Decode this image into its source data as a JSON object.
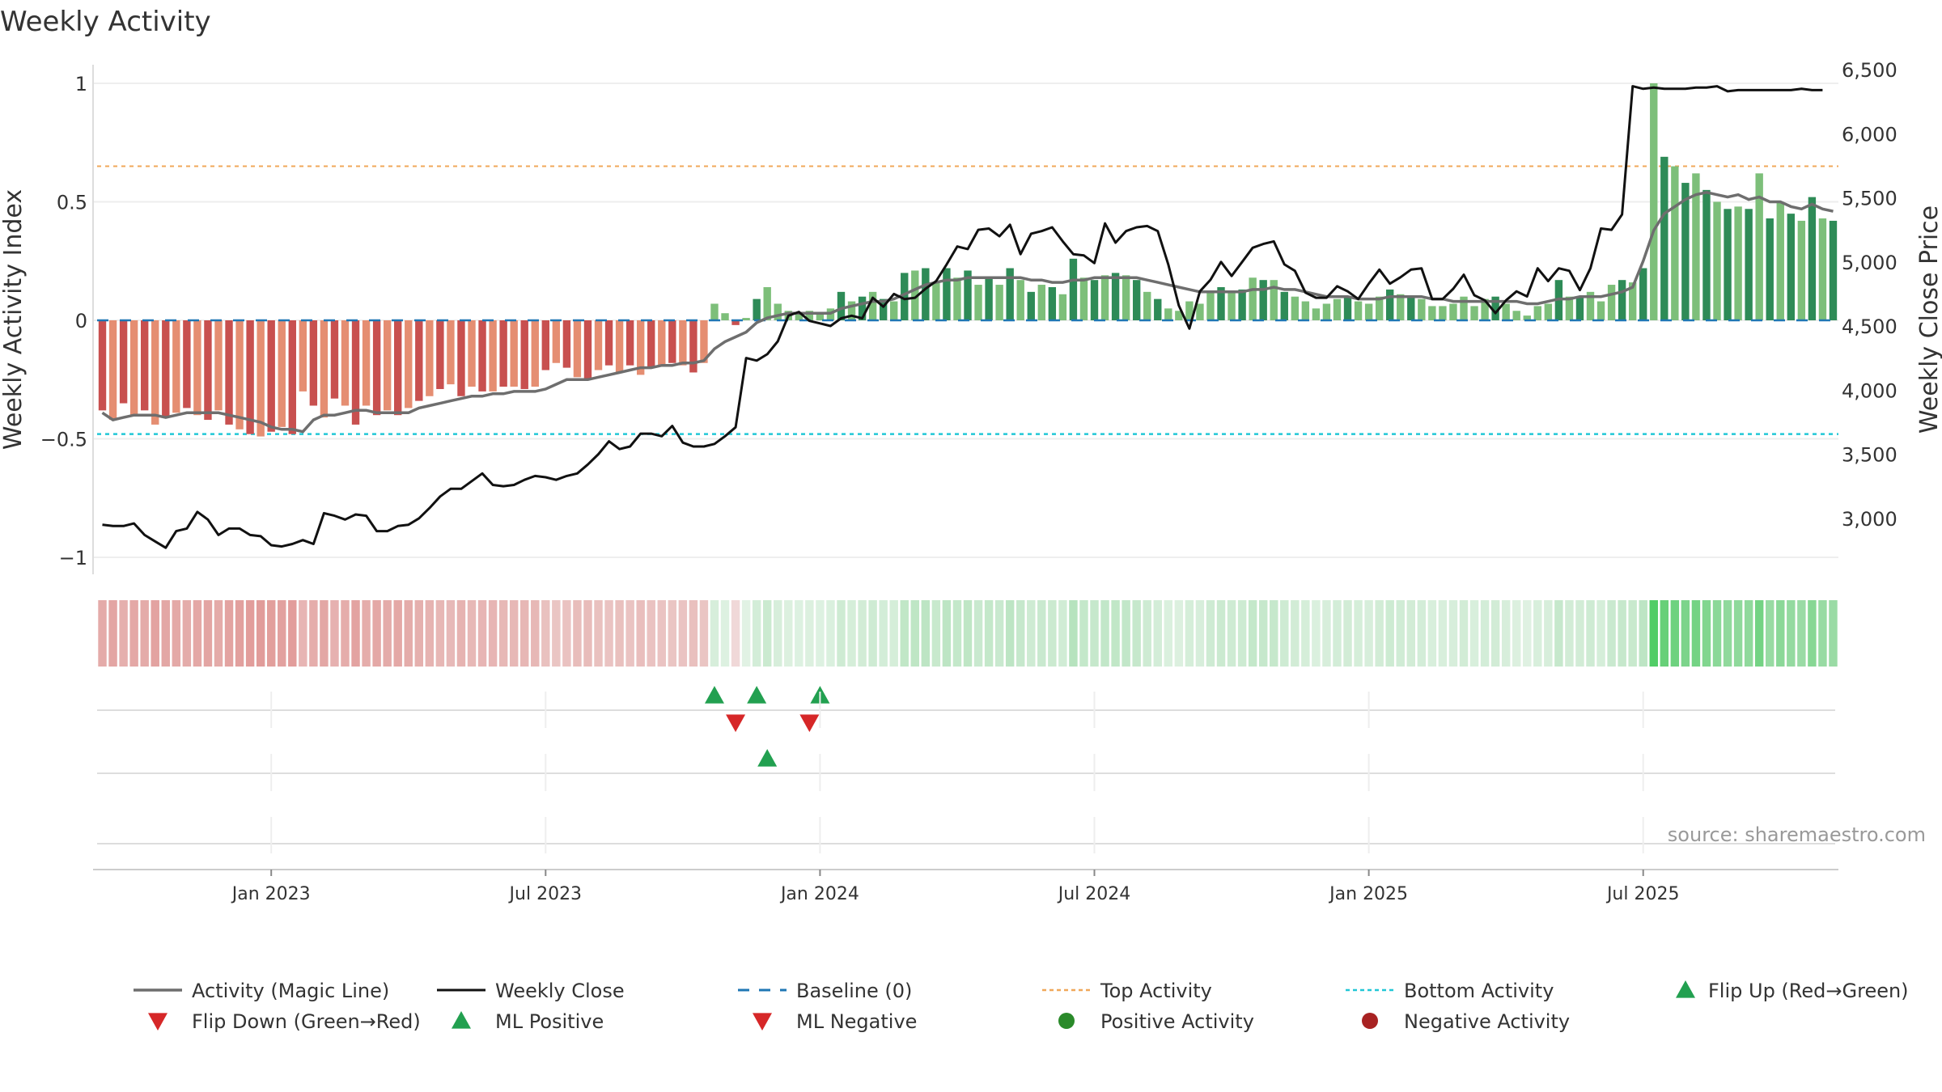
{
  "title": "Weekly Activity",
  "source": "source: sharemaestro.com",
  "colors": {
    "neg_dark": "#c8504f",
    "neg_light": "#e58e72",
    "pos_dark": "#2e8b57",
    "pos_light": "#7dbf7a",
    "magic": "#6e6e6e",
    "close": "#111111",
    "baseline": "#1f77b4",
    "top": "#f0a85a",
    "bottom": "#22c7d6",
    "flip_up": "#22a050",
    "flip_down": "#d62728"
  },
  "chart_data": {
    "type": "bar",
    "title": "Weekly Activity",
    "ylabel_left": "Weekly Activity Index",
    "ylabel_right": "Weekly Close Price",
    "ylim_left": [
      -1.05,
      1.0
    ],
    "ylim_right": [
      2600,
      6500
    ],
    "left_ticks": [
      {
        "v": 1,
        "label": "1"
      },
      {
        "v": 0.5,
        "label": "0.5"
      },
      {
        "v": 0,
        "label": "0"
      },
      {
        "v": -0.5,
        "label": "−0.5"
      },
      {
        "v": -1,
        "label": "−1"
      }
    ],
    "right_ticks": [
      {
        "v": 6500,
        "label": "6,500"
      },
      {
        "v": 6000,
        "label": "6,000"
      },
      {
        "v": 5500,
        "label": "5,500"
      },
      {
        "v": 5000,
        "label": "5,000"
      },
      {
        "v": 4500,
        "label": "4,500"
      },
      {
        "v": 4000,
        "label": "4,000"
      },
      {
        "v": 3500,
        "label": "3,500"
      },
      {
        "v": 3000,
        "label": "3,000"
      }
    ],
    "date_ticks": [
      {
        "week": 16,
        "label": "Jan 2023"
      },
      {
        "week": 42,
        "label": "Jul 2023"
      },
      {
        "week": 68,
        "label": "Jan 2024"
      },
      {
        "week": 94,
        "label": "Jul 2024"
      },
      {
        "week": 120,
        "label": "Jan 2025"
      },
      {
        "week": 146,
        "label": "Jul 2025"
      }
    ],
    "top_activity": 0.65,
    "bottom_activity": -0.48,
    "activity": [
      -0.38,
      -0.42,
      -0.35,
      -0.4,
      -0.38,
      -0.44,
      -0.41,
      -0.39,
      -0.37,
      -0.4,
      -0.42,
      -0.38,
      -0.44,
      -0.46,
      -0.48,
      -0.49,
      -0.47,
      -0.45,
      -0.48,
      -0.3,
      -0.36,
      -0.41,
      -0.33,
      -0.36,
      -0.44,
      -0.36,
      -0.4,
      -0.38,
      -0.4,
      -0.37,
      -0.34,
      -0.32,
      -0.29,
      -0.27,
      -0.32,
      -0.28,
      -0.3,
      -0.3,
      -0.28,
      -0.28,
      -0.29,
      -0.28,
      -0.21,
      -0.18,
      -0.2,
      -0.24,
      -0.25,
      -0.21,
      -0.19,
      -0.22,
      -0.19,
      -0.23,
      -0.2,
      -0.19,
      -0.18,
      -0.19,
      -0.22,
      -0.18,
      0.07,
      0.03,
      -0.02,
      0.01,
      0.09,
      0.14,
      0.07,
      0.04,
      0.03,
      0.04,
      0.03,
      0.05,
      0.12,
      0.08,
      0.1,
      0.12,
      0.09,
      0.08,
      0.2,
      0.21,
      0.22,
      0.16,
      0.22,
      0.18,
      0.21,
      0.15,
      0.18,
      0.15,
      0.22,
      0.17,
      0.12,
      0.15,
      0.14,
      0.11,
      0.26,
      0.18,
      0.17,
      0.19,
      0.2,
      0.19,
      0.17,
      0.12,
      0.09,
      0.05,
      0.04,
      0.08,
      0.07,
      0.12,
      0.14,
      0.12,
      0.13,
      0.18,
      0.17,
      0.17,
      0.12,
      0.1,
      0.08,
      0.05,
      0.07,
      0.09,
      0.1,
      0.08,
      0.07,
      0.1,
      0.13,
      0.11,
      0.1,
      0.09,
      0.06,
      0.06,
      0.07,
      0.1,
      0.06,
      0.09,
      0.1,
      0.07,
      0.04,
      0.02,
      0.06,
      0.07,
      0.17,
      0.1,
      0.1,
      0.12,
      0.08,
      0.15,
      0.17,
      0.16,
      0.22,
      1.0,
      0.69,
      0.65,
      0.58,
      0.62,
      0.55,
      0.5,
      0.47,
      0.48,
      0.47,
      0.62,
      0.43,
      0.5,
      0.45,
      0.42,
      0.52,
      0.43,
      0.42
    ],
    "magic_line": [
      -0.39,
      -0.42,
      -0.41,
      -0.4,
      -0.4,
      -0.4,
      -0.41,
      -0.4,
      -0.39,
      -0.39,
      -0.39,
      -0.39,
      -0.4,
      -0.41,
      -0.42,
      -0.43,
      -0.45,
      -0.46,
      -0.46,
      -0.47,
      -0.42,
      -0.4,
      -0.4,
      -0.39,
      -0.38,
      -0.38,
      -0.39,
      -0.39,
      -0.39,
      -0.39,
      -0.37,
      -0.36,
      -0.35,
      -0.34,
      -0.33,
      -0.32,
      -0.32,
      -0.31,
      -0.31,
      -0.3,
      -0.3,
      -0.3,
      -0.29,
      -0.27,
      -0.25,
      -0.25,
      -0.25,
      -0.24,
      -0.23,
      -0.22,
      -0.21,
      -0.2,
      -0.2,
      -0.19,
      -0.19,
      -0.18,
      -0.18,
      -0.17,
      -0.12,
      -0.09,
      -0.07,
      -0.05,
      -0.01,
      0.01,
      0.02,
      0.03,
      0.03,
      0.03,
      0.03,
      0.03,
      0.05,
      0.06,
      0.07,
      0.08,
      0.08,
      0.09,
      0.11,
      0.13,
      0.15,
      0.16,
      0.17,
      0.17,
      0.18,
      0.18,
      0.18,
      0.18,
      0.18,
      0.18,
      0.17,
      0.17,
      0.16,
      0.16,
      0.17,
      0.17,
      0.18,
      0.18,
      0.18,
      0.18,
      0.18,
      0.17,
      0.16,
      0.15,
      0.14,
      0.13,
      0.12,
      0.12,
      0.12,
      0.12,
      0.12,
      0.13,
      0.13,
      0.14,
      0.13,
      0.13,
      0.12,
      0.11,
      0.1,
      0.1,
      0.1,
      0.09,
      0.09,
      0.09,
      0.1,
      0.1,
      0.1,
      0.1,
      0.09,
      0.09,
      0.08,
      0.08,
      0.08,
      0.08,
      0.08,
      0.08,
      0.08,
      0.07,
      0.07,
      0.08,
      0.09,
      0.09,
      0.1,
      0.1,
      0.1,
      0.11,
      0.12,
      0.14,
      0.25,
      0.38,
      0.45,
      0.48,
      0.51,
      0.53,
      0.54,
      0.53,
      0.52,
      0.53,
      0.51,
      0.52,
      0.5,
      0.5,
      0.48,
      0.47,
      0.49,
      0.47,
      0.46
    ],
    "close": [
      2950,
      2940,
      2940,
      2960,
      2870,
      2820,
      2770,
      2900,
      2920,
      3050,
      2990,
      2870,
      2920,
      2920,
      2870,
      2860,
      2790,
      2780,
      2800,
      2830,
      2800,
      3040,
      3020,
      2990,
      3030,
      3020,
      2900,
      2900,
      2940,
      2950,
      3000,
      3080,
      3170,
      3230,
      3230,
      3290,
      3350,
      3260,
      3250,
      3260,
      3300,
      3330,
      3320,
      3300,
      3330,
      3350,
      3420,
      3500,
      3600,
      3540,
      3560,
      3660,
      3660,
      3640,
      3720,
      3590,
      3560,
      3560,
      3580,
      3640,
      3710,
      4250,
      4230,
      4280,
      4380,
      4580,
      4610,
      4540,
      4520,
      4500,
      4560,
      4580,
      4560,
      4720,
      4650,
      4750,
      4710,
      4720,
      4790,
      4850,
      4980,
      5120,
      5100,
      5250,
      5260,
      5200,
      5290,
      5060,
      5220,
      5240,
      5270,
      5160,
      5060,
      5050,
      4990,
      5300,
      5150,
      5240,
      5270,
      5280,
      5240,
      4980,
      4660,
      4480,
      4770,
      4860,
      5000,
      4890,
      5000,
      5110,
      5140,
      5160,
      4980,
      4930,
      4760,
      4720,
      4720,
      4810,
      4770,
      4710,
      4830,
      4940,
      4830,
      4880,
      4940,
      4950,
      4710,
      4710,
      4790,
      4900,
      4740,
      4700,
      4600,
      4700,
      4770,
      4730,
      4950,
      4850,
      4950,
      4930,
      4780,
      4950,
      5260,
      5250,
      5370,
      6370,
      6350,
      6360,
      6350,
      6350,
      6350,
      6360,
      6360,
      6370,
      6330,
      6340,
      6340,
      6340,
      6340,
      6340,
      6340,
      6350,
      6340,
      6340
    ],
    "flip_up": [
      {
        "week": 58,
        "label": "Flip Up (Red→Green)"
      },
      {
        "week": 62
      },
      {
        "week": 68
      }
    ],
    "flip_down": [
      {
        "week": 60
      },
      {
        "week": 67
      }
    ],
    "ml_positive": [
      {
        "week": 63
      }
    ],
    "ml_negative": [],
    "positive_activity": [],
    "negative_activity": []
  },
  "legend": [
    {
      "key": "magic",
      "label": "Activity (Magic Line)"
    },
    {
      "key": "close",
      "label": "Weekly Close"
    },
    {
      "key": "baseline",
      "label": "Baseline (0)"
    },
    {
      "key": "top",
      "label": "Top Activity"
    },
    {
      "key": "bottom",
      "label": "Bottom Activity"
    },
    {
      "key": "flipup",
      "label": "Flip Up (Red→Green)"
    },
    {
      "key": "flipdown",
      "label": "Flip Down (Green→Red)"
    },
    {
      "key": "mlpos",
      "label": "ML Positive"
    },
    {
      "key": "mlneg",
      "label": "ML Negative"
    },
    {
      "key": "posact",
      "label": "Positive Activity"
    },
    {
      "key": "negact",
      "label": "Negative Activity"
    }
  ]
}
